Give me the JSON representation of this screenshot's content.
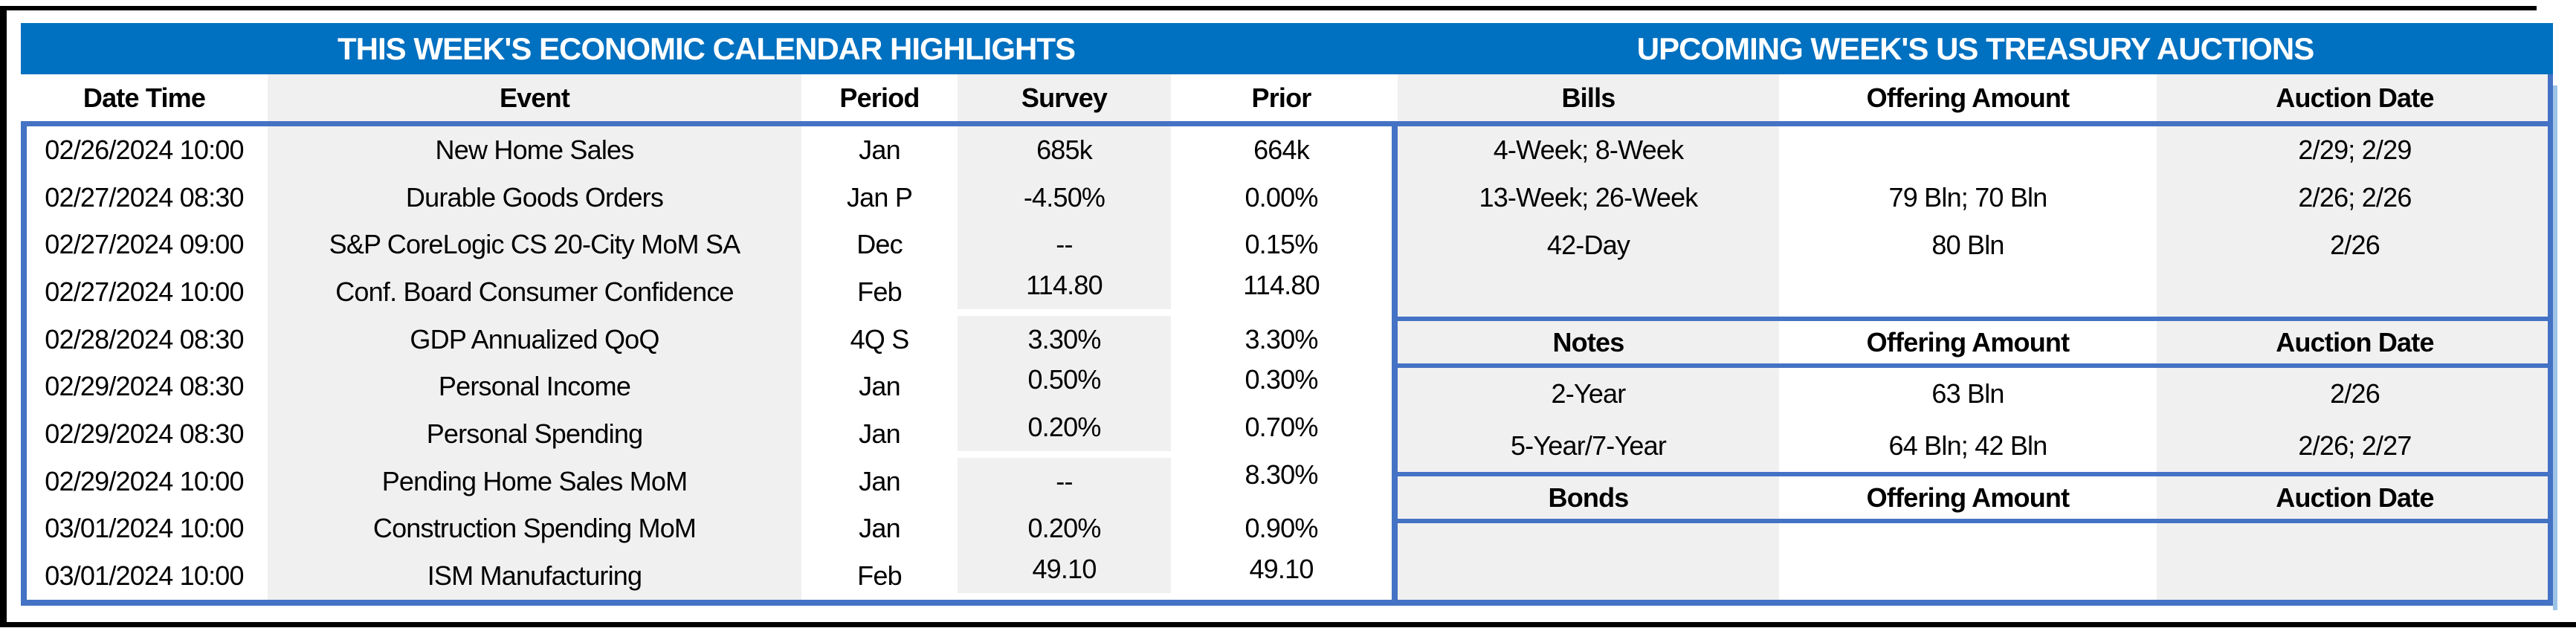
{
  "colors": {
    "band_blue": "#0070C0",
    "line_blue": "#4472C4",
    "stripe_gray": "#F0F0F0",
    "shadow_blue": "#9DC3E6",
    "frame_black": "#000000"
  },
  "left_table": {
    "title": "THIS WEEK'S ECONOMIC CALENDAR HIGHLIGHTS",
    "columns": [
      "Date Time",
      "Event",
      "Period",
      "Survey",
      "Prior"
    ],
    "rows": [
      {
        "date": "02/26/2024 10:00",
        "event": "New Home Sales",
        "period": "Jan",
        "survey": "685k",
        "prior": "664k"
      },
      {
        "date": "02/27/2024 08:30",
        "event": "Durable Goods Orders",
        "period": "Jan P",
        "survey": "-4.50%",
        "prior": "0.00%"
      },
      {
        "date": "02/27/2024 09:00",
        "event": "S&P CoreLogic CS 20-City MoM SA",
        "period": "Dec",
        "survey": "--",
        "prior": "0.15%"
      },
      {
        "date": "02/27/2024 10:00",
        "event": "Conf. Board Consumer Confidence",
        "period": "Feb",
        "survey": "114.80",
        "prior": "114.80"
      },
      {
        "date": "02/28/2024 08:30",
        "event": "GDP Annualized QoQ",
        "period": "4Q S",
        "survey": "3.30%",
        "prior": "3.30%"
      },
      {
        "date": "02/29/2024 08:30",
        "event": "Personal Income",
        "period": "Jan",
        "survey": "0.50%",
        "prior": "0.30%"
      },
      {
        "date": "02/29/2024 08:30",
        "event": "Personal Spending",
        "period": "Jan",
        "survey": "0.20%",
        "prior": "0.70%"
      },
      {
        "date": "02/29/2024 10:00",
        "event": "Pending Home Sales MoM",
        "period": "Jan",
        "survey": "--",
        "prior": "8.30%"
      },
      {
        "date": "03/01/2024 10:00",
        "event": "Construction Spending MoM",
        "period": "Jan",
        "survey": "0.20%",
        "prior": "0.90%"
      },
      {
        "date": "03/01/2024 10:00",
        "event": "ISM Manufacturing",
        "period": "Feb",
        "survey": "49.10",
        "prior": "49.10"
      }
    ]
  },
  "right_table": {
    "title": "UPCOMING WEEK'S US TREASURY AUCTIONS",
    "sections": [
      {
        "name": "Bills",
        "header": [
          "Bills",
          "Offering Amount",
          "Auction Date"
        ],
        "rows": [
          {
            "security": "4-Week; 8-Week",
            "offering": "",
            "auction": "2/29; 2/29"
          },
          {
            "security": "13-Week; 26-Week",
            "offering": "79 Bln; 70 Bln",
            "auction": "2/26; 2/26"
          },
          {
            "security": "42-Day",
            "offering": "80 Bln",
            "auction": "2/26"
          },
          {
            "security": "",
            "offering": "",
            "auction": ""
          }
        ]
      },
      {
        "name": "Notes",
        "header": [
          "Notes",
          "Offering Amount",
          "Auction Date"
        ],
        "rows": [
          {
            "security": "2-Year",
            "offering": "63 Bln",
            "auction": "2/26"
          },
          {
            "security": "5-Year/7-Year",
            "offering": "64 Bln; 42 Bln",
            "auction": "2/26; 2/27"
          }
        ]
      },
      {
        "name": "Bonds",
        "header": [
          "Bonds",
          "Offering Amount",
          "Auction Date"
        ],
        "rows": [
          {
            "security": "",
            "offering": "",
            "auction": ""
          }
        ]
      }
    ]
  }
}
